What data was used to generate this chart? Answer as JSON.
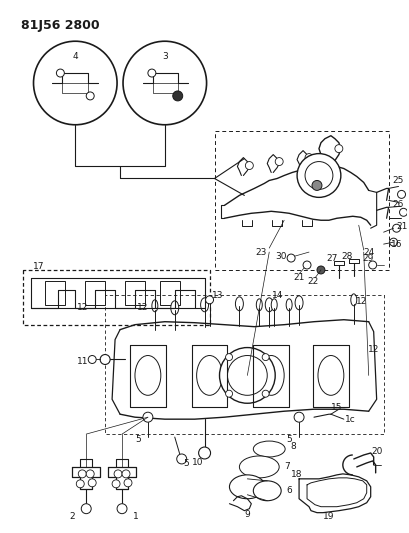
{
  "title": "81J56 2800",
  "bg_color": "#ffffff",
  "fg_color": "#1a1a1a",
  "fig_width": 4.09,
  "fig_height": 5.33,
  "dpi": 100,
  "label_fontsize": 6.5,
  "title_fontsize": 9
}
